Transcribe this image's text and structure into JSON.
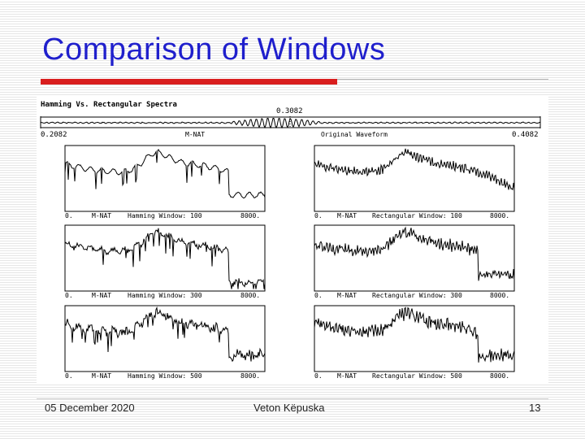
{
  "slide": {
    "title": "Comparison of Windows",
    "colors": {
      "title": "#1f1fcc",
      "accent_rule": "#d91e1e"
    }
  },
  "figure": {
    "heading": "Hamming Vs. Rectangular Spectra",
    "waveform": {
      "start_label": "0.2082",
      "center_label": "0.3082",
      "end_label": "0.4082",
      "channel_label": "M-NAT",
      "caption": "Original Waveform"
    },
    "panels": [
      {
        "start": "0.",
        "channel": "M-NAT",
        "caption": "Hamming Window: 100",
        "end": "8000."
      },
      {
        "start": "0.",
        "channel": "M-NAT",
        "caption": "Rectangular Window: 100",
        "end": "8000."
      },
      {
        "start": "0.",
        "channel": "M-NAT",
        "caption": "Hamming Window: 300",
        "end": "8000."
      },
      {
        "start": "0.",
        "channel": "M-NAT",
        "caption": "Rectangular Window: 300",
        "end": "8000."
      },
      {
        "start": "0.",
        "channel": "M-NAT",
        "caption": "Hamming Window: 500",
        "end": "8000."
      },
      {
        "start": "0.",
        "channel": "M-NAT",
        "caption": "Rectangular Window: 500",
        "end": "8000."
      }
    ]
  },
  "footer": {
    "date": "05 December 2020",
    "author": "Veton Këpuska",
    "page": "13"
  }
}
